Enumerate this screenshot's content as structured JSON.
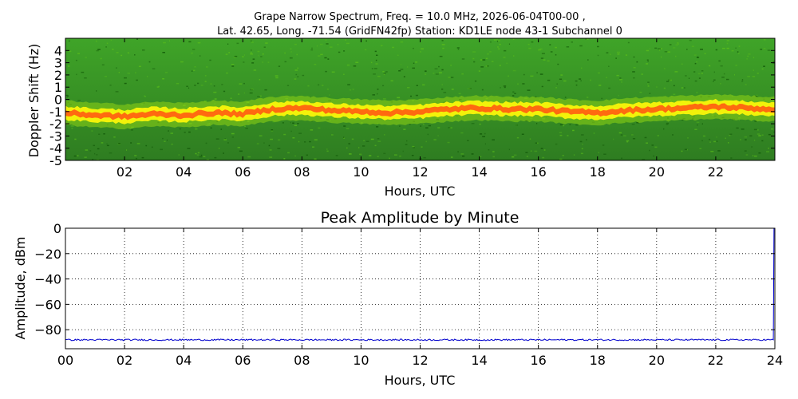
{
  "figure": {
    "title_line1": "Grape Narrow Spectrum, Freq. = 10.0 MHz, 2026-06-04T00-00 ,",
    "title_line2": "Lat.  42.65, Long. -71.54 (GridFN42fp) Station: KD1LE node 43-1 Subchannel 0"
  },
  "chart_data": [
    {
      "type": "heatmap",
      "ylabel": "Doppler Shift (Hz)",
      "xlabel": "Hours, UTC",
      "xlim": [
        0,
        24
      ],
      "ylim": [
        -5,
        5
      ],
      "x_ticks": [
        {
          "value": 2,
          "label": "02"
        },
        {
          "value": 4,
          "label": "04"
        },
        {
          "value": 6,
          "label": "06"
        },
        {
          "value": 8,
          "label": "08"
        },
        {
          "value": 10,
          "label": "10"
        },
        {
          "value": 12,
          "label": "12"
        },
        {
          "value": 14,
          "label": "14"
        },
        {
          "value": 16,
          "label": "16"
        },
        {
          "value": 18,
          "label": "18"
        },
        {
          "value": 20,
          "label": "20"
        },
        {
          "value": 22,
          "label": "22"
        }
      ],
      "y_ticks": [
        {
          "value": 4,
          "label": "4"
        },
        {
          "value": 3,
          "label": "3"
        },
        {
          "value": 2,
          "label": "2"
        },
        {
          "value": 1,
          "label": "1"
        },
        {
          "value": 0,
          "label": "0"
        },
        {
          "value": -1,
          "label": "-1"
        },
        {
          "value": -2,
          "label": "-2"
        },
        {
          "value": -3,
          "label": "-3"
        },
        {
          "value": -4,
          "label": "-4"
        },
        {
          "value": -5,
          "label": "-5"
        }
      ],
      "colors": {
        "background": "#1f8a0a",
        "band_outer": "#f2f20a",
        "band_core": "#ff6a10"
      },
      "signal_trace": {
        "x": [
          0,
          1,
          2,
          3,
          4,
          5,
          6,
          7,
          8,
          9,
          10,
          11,
          12,
          13,
          14,
          15,
          16,
          17,
          18,
          19,
          20,
          21,
          22,
          23,
          23.8
        ],
        "y": [
          -1.1,
          -1.3,
          -1.4,
          -1.2,
          -1.3,
          -1.1,
          -1.2,
          -0.8,
          -0.7,
          -0.9,
          -1.0,
          -1.1,
          -1.0,
          -0.8,
          -0.7,
          -0.8,
          -0.8,
          -1.0,
          -1.1,
          -0.9,
          -0.8,
          -0.7,
          -0.6,
          -0.7,
          -0.8
        ]
      }
    },
    {
      "type": "line",
      "title": "Peak Amplitude by Minute",
      "xlabel": "Hours, UTC",
      "ylabel": "Amplitude, dBm",
      "xlim": [
        0,
        24
      ],
      "ylim": [
        -95,
        0
      ],
      "grid": true,
      "x_ticks": [
        {
          "value": 0,
          "label": "00"
        },
        {
          "value": 2,
          "label": "02"
        },
        {
          "value": 4,
          "label": "04"
        },
        {
          "value": 6,
          "label": "06"
        },
        {
          "value": 8,
          "label": "08"
        },
        {
          "value": 10,
          "label": "10"
        },
        {
          "value": 12,
          "label": "12"
        },
        {
          "value": 14,
          "label": "14"
        },
        {
          "value": 16,
          "label": "16"
        },
        {
          "value": 18,
          "label": "18"
        },
        {
          "value": 20,
          "label": "20"
        },
        {
          "value": 22,
          "label": "22"
        },
        {
          "value": 24,
          "label": "24"
        }
      ],
      "y_ticks": [
        {
          "value": 0,
          "label": "0"
        },
        {
          "value": -20,
          "label": "−20"
        },
        {
          "value": -40,
          "label": "−40"
        },
        {
          "value": -60,
          "label": "−60"
        },
        {
          "value": -80,
          "label": "−80"
        }
      ],
      "line_color": "#0000cc",
      "series": [
        {
          "x": [
            0,
            1,
            2,
            3,
            4,
            5,
            6,
            7,
            8,
            9,
            10,
            11,
            12,
            13,
            14,
            15,
            16,
            17,
            18,
            19,
            20,
            21,
            22,
            23,
            23.95,
            23.97,
            24.0
          ],
          "values": [
            -88,
            -88,
            -88,
            -88,
            -88,
            -88,
            -88,
            -88,
            -88,
            -88,
            -88,
            -88,
            -88,
            -88,
            -88,
            -88,
            -88,
            -88,
            -88,
            -88,
            -88,
            -88,
            -88,
            -88,
            -88,
            0,
            0
          ]
        }
      ]
    }
  ]
}
